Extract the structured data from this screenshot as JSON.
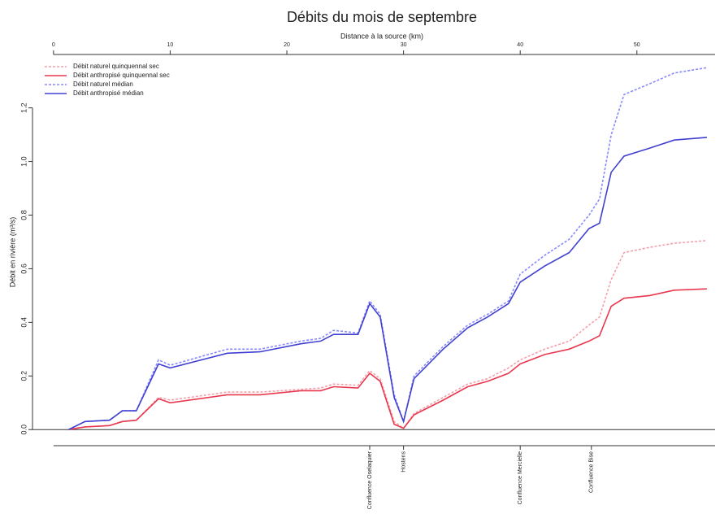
{
  "chart_data": {
    "type": "line",
    "title": "Débits du mois de septembre",
    "x_label": "Distance à la source (km)",
    "y_label": "Débit en rivière (m³/s)",
    "x": [
      1.3,
      2.7,
      4.8,
      5.9,
      7.1,
      9.0,
      10.0,
      14.9,
      17.7,
      21.2,
      22.9,
      24.0,
      26.1,
      27.1,
      28.0,
      29.2,
      30.0,
      30.9,
      33.4,
      35.5,
      37.2,
      39.0,
      40.0,
      42.1,
      44.2,
      45.9,
      46.8,
      47.8,
      48.9,
      51.1,
      53.2,
      56.0
    ],
    "series": [
      {
        "name": "Débit naturel quinquennal sec",
        "color": "#f4a0aa",
        "dashed": true,
        "values": [
          0,
          0.01,
          0.015,
          0.03,
          0.035,
          0.12,
          0.11,
          0.14,
          0.14,
          0.15,
          0.155,
          0.17,
          0.165,
          0.22,
          0.19,
          0.03,
          0.005,
          0.06,
          0.12,
          0.17,
          0.19,
          0.23,
          0.26,
          0.3,
          0.33,
          0.39,
          0.42,
          0.56,
          0.66,
          0.68,
          0.695,
          0.705
        ]
      },
      {
        "name": "Débit anthropisé quinquennal sec",
        "color": "#e8384f",
        "dashed": false,
        "values": [
          0,
          0.01,
          0.015,
          0.03,
          0.035,
          0.115,
          0.1,
          0.13,
          0.13,
          0.145,
          0.145,
          0.16,
          0.155,
          0.21,
          0.18,
          0.02,
          0.005,
          0.055,
          0.11,
          0.16,
          0.18,
          0.21,
          0.245,
          0.28,
          0.3,
          0.33,
          0.35,
          0.46,
          0.49,
          0.5,
          0.52,
          0.525
        ]
      },
      {
        "name": "Débit naturel médian",
        "color": "#8888ff",
        "dashed": true,
        "values": [
          0,
          0.03,
          0.035,
          0.07,
          0.07,
          0.26,
          0.24,
          0.3,
          0.3,
          0.33,
          0.34,
          0.37,
          0.36,
          0.48,
          0.43,
          0.13,
          0.03,
          0.2,
          0.31,
          0.39,
          0.43,
          0.48,
          0.58,
          0.65,
          0.71,
          0.8,
          0.86,
          1.1,
          1.25,
          1.29,
          1.33,
          1.35
        ]
      },
      {
        "name": "Débit anthropisé médian",
        "color": "#4040d0",
        "dashed": false,
        "values": [
          0,
          0.03,
          0.035,
          0.07,
          0.07,
          0.245,
          0.23,
          0.285,
          0.29,
          0.32,
          0.33,
          0.355,
          0.355,
          0.47,
          0.42,
          0.12,
          0.03,
          0.19,
          0.3,
          0.38,
          0.42,
          0.47,
          0.55,
          0.61,
          0.66,
          0.75,
          0.77,
          0.96,
          1.02,
          1.05,
          1.08,
          1.09
        ]
      }
    ],
    "xlim": [
      -1.8,
      56.7
    ],
    "ylim": [
      -0.06,
      1.39
    ],
    "xticks": [
      0,
      10,
      20,
      30,
      40,
      50
    ],
    "yticks": [
      {
        "value": 0,
        "label": "0.0"
      },
      0.2,
      0.4,
      0.6,
      0.8,
      {
        "value": 1,
        "label": "1.0"
      },
      1.2
    ],
    "hline": 0,
    "legend": "top-left",
    "annotations": [
      {
        "x": 27.1,
        "label": "Confluence Oselaquier"
      },
      {
        "x": 30.0,
        "label": "Hostens"
      },
      {
        "x": 40.0,
        "label": "Confluence Mercielle"
      },
      {
        "x": 46.1,
        "label": "Confluence Bise"
      }
    ]
  }
}
